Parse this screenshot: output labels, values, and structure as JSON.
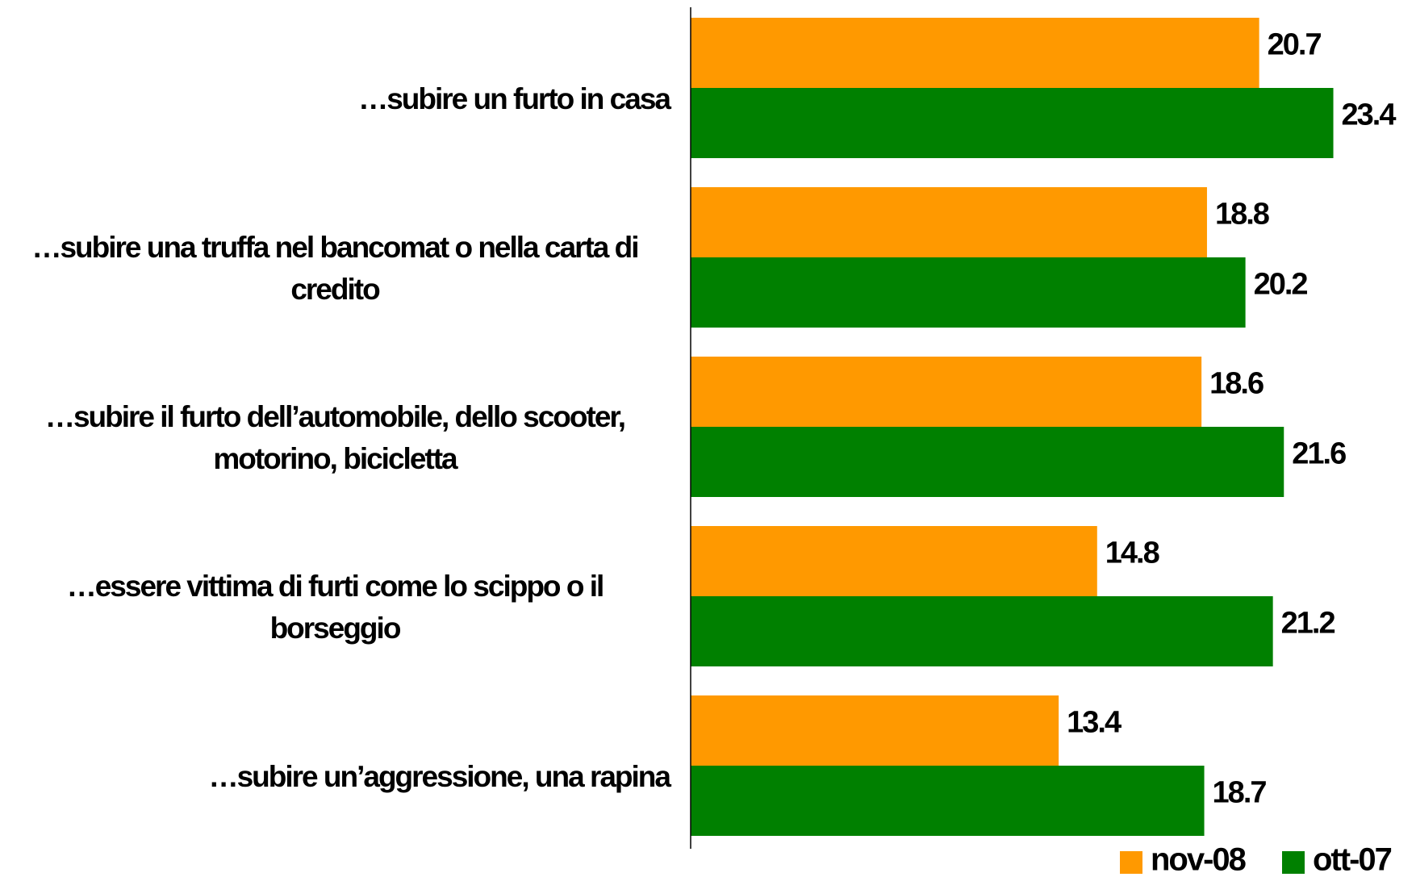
{
  "chart_data": {
    "type": "bar",
    "orientation": "horizontal",
    "categories": [
      "…subire un furto in casa",
      "…subire una truffa nel bancomat o nella carta di credito",
      "…subire il furto dell’automobile, dello scooter, motorino, bicicletta",
      "…essere vittima di furti come lo scippo o il borseggio",
      "…subire un’aggressione, una rapina"
    ],
    "series": [
      {
        "name": "nov-08",
        "color": "#ff9900",
        "values": [
          20.7,
          18.8,
          18.6,
          14.8,
          13.4
        ]
      },
      {
        "name": "ott-07",
        "color": "#008000",
        "values": [
          23.4,
          20.2,
          21.6,
          21.2,
          18.7
        ]
      }
    ],
    "xlim": [
      0,
      25
    ],
    "legend": "bottom-right"
  }
}
